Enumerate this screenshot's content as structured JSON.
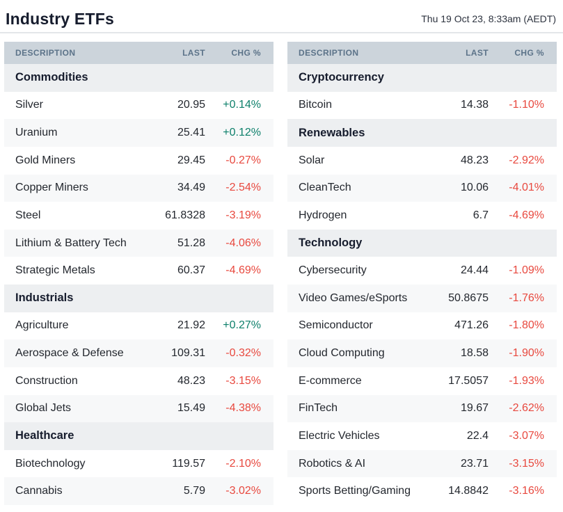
{
  "page": {
    "title": "Industry ETFs",
    "timestamp": "Thu 19 Oct 23, 8:33am (AEDT)"
  },
  "table_header": {
    "description": "DESCRIPTION",
    "last": "LAST",
    "chg": "CHG %"
  },
  "colors": {
    "positive": "#0c7f6a",
    "negative": "#e8483e",
    "header_bg": "#ccd4db",
    "header_text": "#5c7389",
    "section_bg": "#edeff1",
    "alt_row_bg": "#f7f8f9",
    "title_text": "#161c2d"
  },
  "tables": [
    {
      "name": "left-table",
      "sections": [
        {
          "name": "Commodities",
          "rows": [
            {
              "description": "Silver",
              "last": "20.95",
              "chg": "+0.14%",
              "direction": "up"
            },
            {
              "description": "Uranium",
              "last": "25.41",
              "chg": "+0.12%",
              "direction": "up"
            },
            {
              "description": "Gold Miners",
              "last": "29.45",
              "chg": "-0.27%",
              "direction": "down"
            },
            {
              "description": "Copper Miners",
              "last": "34.49",
              "chg": "-2.54%",
              "direction": "down"
            },
            {
              "description": "Steel",
              "last": "61.8328",
              "chg": "-3.19%",
              "direction": "down"
            },
            {
              "description": "Lithium & Battery Tech",
              "last": "51.28",
              "chg": "-4.06%",
              "direction": "down"
            },
            {
              "description": "Strategic Metals",
              "last": "60.37",
              "chg": "-4.69%",
              "direction": "down"
            }
          ]
        },
        {
          "name": "Industrials",
          "rows": [
            {
              "description": "Agriculture",
              "last": "21.92",
              "chg": "+0.27%",
              "direction": "up"
            },
            {
              "description": "Aerospace & Defense",
              "last": "109.31",
              "chg": "-0.32%",
              "direction": "down"
            },
            {
              "description": "Construction",
              "last": "48.23",
              "chg": "-3.15%",
              "direction": "down"
            },
            {
              "description": "Global Jets",
              "last": "15.49",
              "chg": "-4.38%",
              "direction": "down"
            }
          ]
        },
        {
          "name": "Healthcare",
          "rows": [
            {
              "description": "Biotechnology",
              "last": "119.57",
              "chg": "-2.10%",
              "direction": "down"
            },
            {
              "description": "Cannabis",
              "last": "5.79",
              "chg": "-3.02%",
              "direction": "down"
            }
          ]
        }
      ]
    },
    {
      "name": "right-table",
      "sections": [
        {
          "name": "Cryptocurrency",
          "rows": [
            {
              "description": "Bitcoin",
              "last": "14.38",
              "chg": "-1.10%",
              "direction": "down"
            }
          ]
        },
        {
          "name": "Renewables",
          "rows": [
            {
              "description": "Solar",
              "last": "48.23",
              "chg": "-2.92%",
              "direction": "down"
            },
            {
              "description": "CleanTech",
              "last": "10.06",
              "chg": "-4.01%",
              "direction": "down"
            },
            {
              "description": "Hydrogen",
              "last": "6.7",
              "chg": "-4.69%",
              "direction": "down"
            }
          ]
        },
        {
          "name": "Technology",
          "rows": [
            {
              "description": "Cybersecurity",
              "last": "24.44",
              "chg": "-1.09%",
              "direction": "down"
            },
            {
              "description": "Video Games/eSports",
              "last": "50.8675",
              "chg": "-1.76%",
              "direction": "down"
            },
            {
              "description": "Semiconductor",
              "last": "471.26",
              "chg": "-1.80%",
              "direction": "down"
            },
            {
              "description": "Cloud Computing",
              "last": "18.58",
              "chg": "-1.90%",
              "direction": "down"
            },
            {
              "description": "E-commerce",
              "last": "17.5057",
              "chg": "-1.93%",
              "direction": "down"
            },
            {
              "description": "FinTech",
              "last": "19.67",
              "chg": "-2.62%",
              "direction": "down"
            },
            {
              "description": "Electric Vehicles",
              "last": "22.4",
              "chg": "-3.07%",
              "direction": "down"
            },
            {
              "description": "Robotics & AI",
              "last": "23.71",
              "chg": "-3.15%",
              "direction": "down"
            },
            {
              "description": "Sports Betting/Gaming",
              "last": "14.8842",
              "chg": "-3.16%",
              "direction": "down"
            }
          ]
        }
      ]
    }
  ]
}
